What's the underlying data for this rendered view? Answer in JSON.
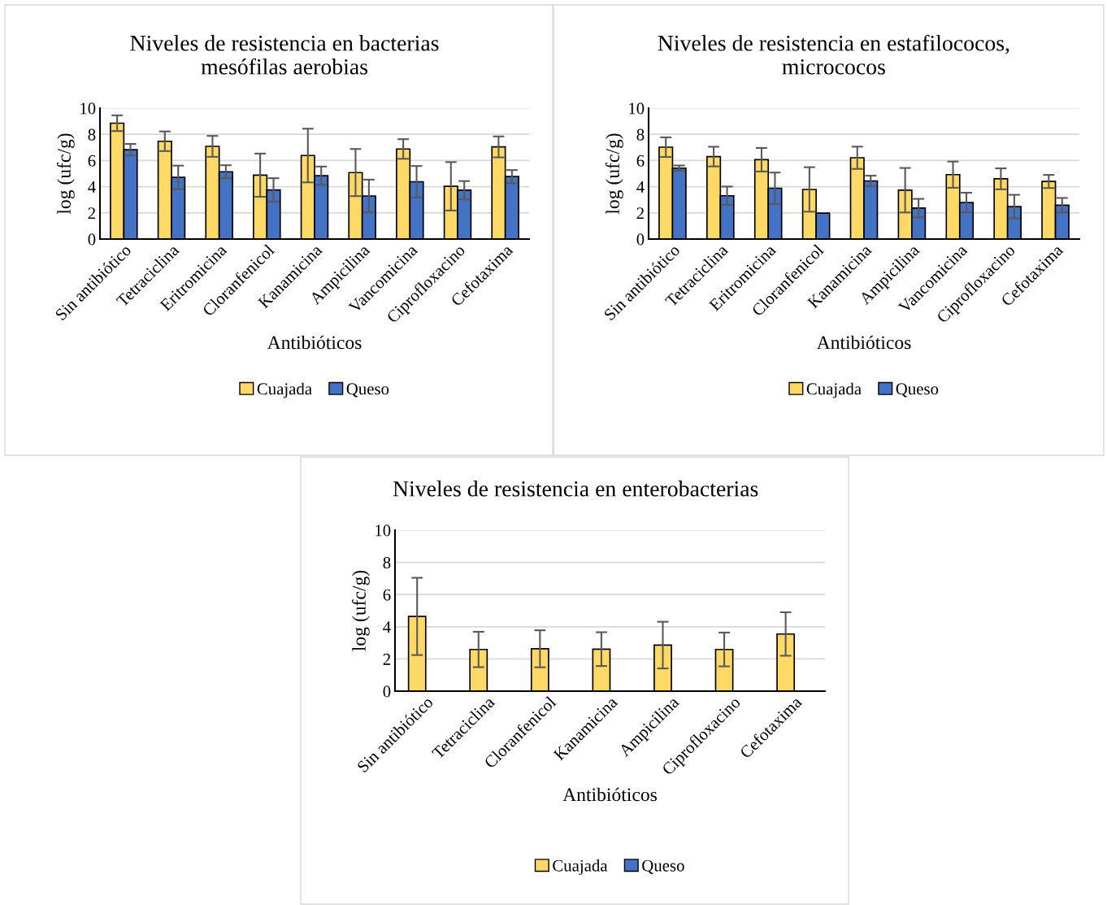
{
  "chart_data": [
    {
      "type": "bar",
      "title": "Niveles de resistencia en bacterias\nmesófilas aerobias",
      "xlabel": "Antibióticos",
      "ylabel": "log (ufc/g)",
      "categories": [
        "Sin antibiótico",
        "Tetraciclina",
        "Eritromicina",
        "Cloranfenicol",
        "Kanamicina",
        "Ampicilina",
        "Vancomicina",
        "Ciprofloxacino",
        "Cefotaxima"
      ],
      "series": [
        {
          "name": "Cuajada",
          "color": "#ffd966",
          "values": [
            8.85,
            7.47,
            7.08,
            4.88,
            6.38,
            5.08,
            6.88,
            4.03,
            7.04
          ],
          "errors": [
            0.6,
            0.75,
            0.8,
            1.65,
            2.05,
            1.8,
            0.75,
            1.85,
            0.8
          ]
        },
        {
          "name": "Queso",
          "color": "#4472c4",
          "values": [
            6.82,
            4.71,
            5.14,
            3.75,
            4.84,
            3.29,
            4.38,
            3.73,
            4.77
          ],
          "errors": [
            0.45,
            0.9,
            0.5,
            0.9,
            0.7,
            1.25,
            1.2,
            0.7,
            0.5
          ]
        }
      ],
      "ylim": [
        0,
        10
      ],
      "yticks": [
        0,
        2,
        4,
        6,
        8,
        10
      ],
      "grid": "y",
      "legend": "bottom"
    },
    {
      "type": "bar",
      "title": "Niveles de resistencia en estafilococos,\nmicrococos",
      "xlabel": "Antibióticos",
      "ylabel": "log (ufc/g)",
      "categories": [
        "Sin antibiótico",
        "Tetraciclina",
        "Eritromicina",
        "Cloranfenicol",
        "Kanamicina",
        "Ampicilina",
        "Vancomicina",
        "Ciprofloxacino",
        "Cefotaxima"
      ],
      "series": [
        {
          "name": "Cuajada",
          "color": "#ffd966",
          "values": [
            7.02,
            6.3,
            6.06,
            3.79,
            6.21,
            3.73,
            4.92,
            4.6,
            4.4
          ],
          "errors": [
            0.75,
            0.75,
            0.9,
            1.7,
            0.85,
            1.7,
            1.0,
            0.8,
            0.5
          ]
        },
        {
          "name": "Queso",
          "color": "#4472c4",
          "values": [
            5.42,
            3.31,
            3.88,
            1.98,
            4.44,
            2.37,
            2.79,
            2.48,
            2.59
          ],
          "errors": [
            0.2,
            0.7,
            1.2,
            null,
            0.4,
            0.7,
            0.75,
            0.9,
            0.55
          ]
        }
      ],
      "ylim": [
        0,
        10
      ],
      "yticks": [
        0,
        2,
        4,
        6,
        8,
        10
      ],
      "grid": "y",
      "legend": "bottom"
    },
    {
      "type": "bar",
      "title": "Niveles de resistencia en enterobacterias",
      "xlabel": "Antibióticos",
      "ylabel": "log (ufc/g)",
      "categories": [
        "Sin antibiótico",
        "Tetraciclina",
        "Cloranfenicol",
        "Kanamicina",
        "Ampicilina",
        "Ciprofloxacino",
        "Cefotaxima"
      ],
      "series": [
        {
          "name": "Cuajada",
          "color": "#ffd966",
          "values": [
            4.64,
            2.59,
            2.63,
            2.61,
            2.86,
            2.59,
            3.55
          ],
          "errors": [
            2.4,
            1.1,
            1.15,
            1.05,
            1.45,
            1.05,
            1.35
          ]
        },
        {
          "name": "Queso",
          "color": "#4472c4",
          "values": [
            0,
            0,
            0,
            0,
            0,
            0,
            0
          ],
          "errors": [
            null,
            null,
            null,
            null,
            null,
            null,
            null
          ]
        }
      ],
      "ylim": [
        0,
        10
      ],
      "yticks": [
        0,
        2,
        4,
        6,
        8,
        10
      ],
      "grid": "y",
      "legend": "bottom"
    }
  ]
}
